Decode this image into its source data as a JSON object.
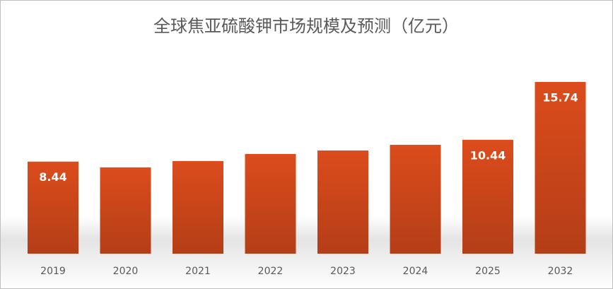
{
  "chart_data": {
    "type": "bar",
    "title": "全球焦亚硫酸钾市场规模及预测（亿元）",
    "categories": [
      "2019",
      "2020",
      "2021",
      "2022",
      "2023",
      "2024",
      "2025",
      "2032"
    ],
    "values": [
      8.44,
      7.91,
      8.49,
      9.14,
      9.46,
      9.98,
      10.44,
      15.74
    ],
    "value_labels": [
      "8.44",
      null,
      null,
      null,
      null,
      null,
      "10.44",
      "15.74"
    ],
    "color": "#d0461b",
    "grid": false
  }
}
